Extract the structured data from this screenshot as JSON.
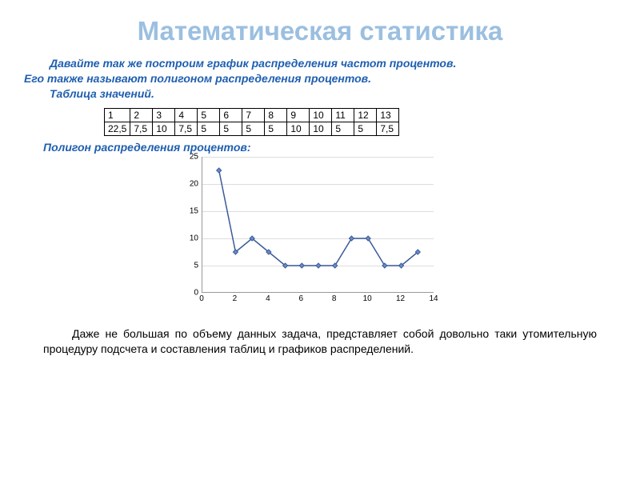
{
  "title": {
    "text": "Математическая статистика",
    "color": "#9bbfe0"
  },
  "intro": {
    "color": "#1f5fb0",
    "line1": "Давайте так же построим график распределения частот процентов.",
    "line2": "Его также называют полигоном распределения процентов.",
    "line3": "Таблица значений."
  },
  "table": {
    "headers": [
      "1",
      "2",
      "3",
      "4",
      "5",
      "6",
      "7",
      "8",
      "9",
      "10",
      "11",
      "12",
      "13"
    ],
    "values": [
      "22,5",
      "7,5",
      "10",
      "7,5",
      "5",
      "5",
      "5",
      "5",
      "10",
      "10",
      "5",
      "5",
      "7,5"
    ]
  },
  "polygon_label": {
    "text": "Полигон распределения процентов:",
    "color": "#1f5fb0"
  },
  "chart": {
    "type": "line",
    "x_values": [
      1,
      2,
      3,
      4,
      5,
      6,
      7,
      8,
      9,
      10,
      11,
      12,
      13
    ],
    "y_values": [
      22.5,
      7.5,
      10,
      7.5,
      5,
      5,
      5,
      5,
      10,
      10,
      5,
      5,
      7.5
    ],
    "xlim": [
      0,
      14
    ],
    "ylim": [
      0,
      25
    ],
    "ytick_step": 5,
    "xtick_step": 2,
    "line_color": "#3b5a9a",
    "marker_color": "#3b5a9a",
    "marker_fill": "#6b8cc7",
    "grid_color": "#dddddd",
    "axis_color": "#999999",
    "tick_fontsize": 10,
    "line_width": 1.5,
    "marker_size": 6
  },
  "outro": "Даже не большая по объему данных задача, представляет собой довольно таки утомительную процедуру подсчета и составления таблиц и графиков распределений."
}
